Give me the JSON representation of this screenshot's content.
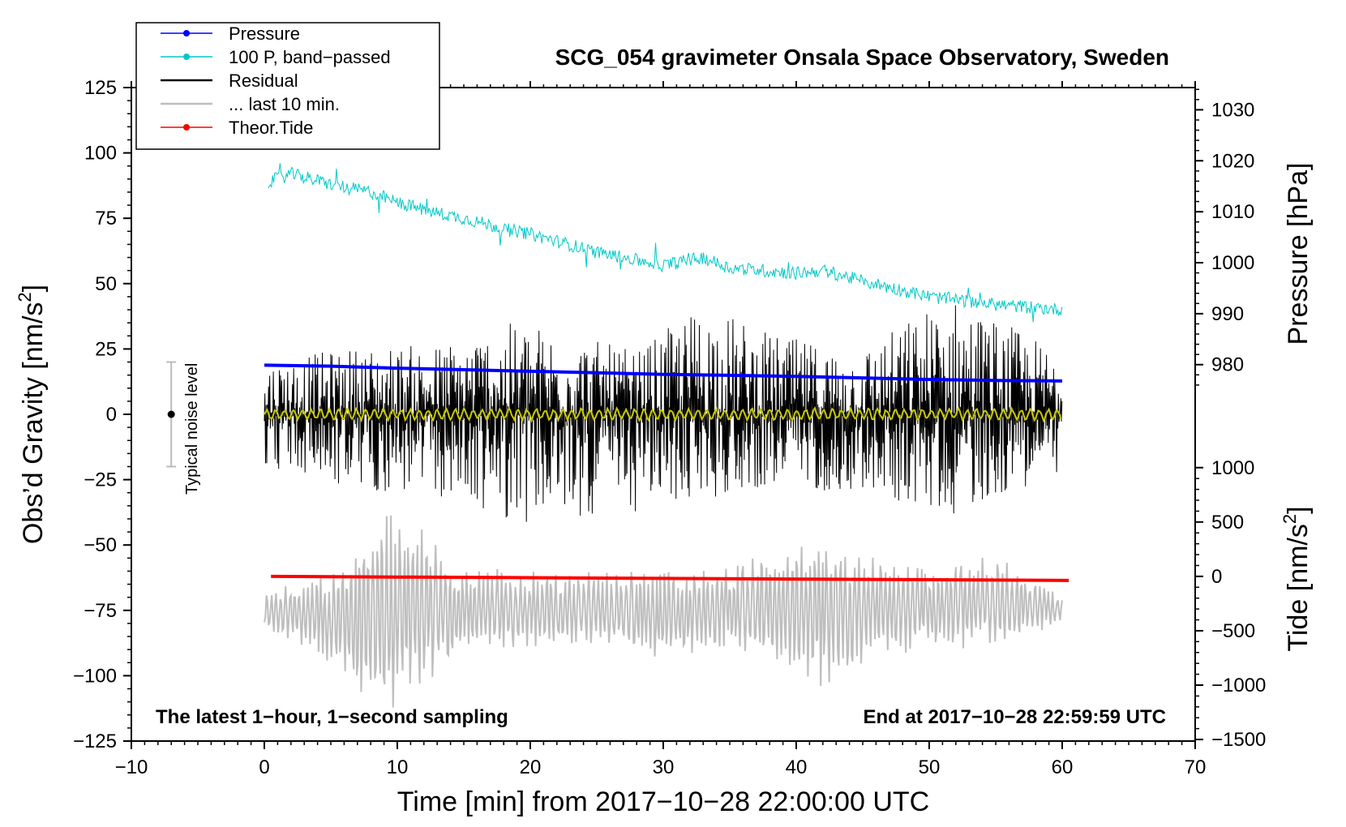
{
  "chart_data": {
    "type": "line",
    "title": "SCG_054 gravimeter Onsala Space Observatory, Sweden",
    "xlabel": "Time [min] from 2017−10−28 22:00:00 UTC",
    "xlim": [
      -10,
      70
    ],
    "x_ticks": [
      -10,
      0,
      10,
      20,
      30,
      40,
      50,
      60,
      70
    ],
    "x_tick_labels": [
      "−10",
      "0",
      "10",
      "20",
      "30",
      "40",
      "50",
      "60",
      "70"
    ],
    "left_axis": {
      "label_main": "Obs’d Gravity [nm/s",
      "label_sup": "2",
      "label_end": "]",
      "ylim": [
        -125,
        125
      ],
      "ticks": [
        125,
        100,
        75,
        50,
        25,
        0,
        -25,
        -50,
        -75,
        -100,
        -125
      ],
      "tick_labels": [
        "125",
        "100",
        "75",
        "50",
        "25",
        "0",
        "−25",
        "−50",
        "−75",
        "−100",
        "−125"
      ]
    },
    "pressure_axis": {
      "label": "Pressure [hPa]",
      "ticks": [
        980,
        990,
        1000,
        1010,
        1020,
        1030
      ],
      "tick_labels": [
        "980",
        "990",
        "1000",
        "1010",
        "1020",
        "1030"
      ],
      "map_gravity_at_980": 19,
      "map_gravity_per_hpa": 1.95
    },
    "tide_axis": {
      "label_main": "Tide [nm/s",
      "label_sup": "2",
      "label_end": "]",
      "ticks": [
        1000,
        500,
        0,
        -500,
        -1000,
        -1500
      ],
      "tick_labels": [
        "1000",
        "500",
        "0",
        "−500",
        "−1000",
        "−1500"
      ],
      "map_gravity_at_0": -62,
      "map_gravity_per_unit": 0.0416
    },
    "legend": {
      "position": "top-left",
      "entries": [
        {
          "label": "Pressure",
          "color": "#0000ff",
          "marker": true
        },
        {
          "label": "100 P, band−passed",
          "color": "#00c8c8",
          "marker": true
        },
        {
          "label": "Residual",
          "color": "#000000",
          "marker": false
        },
        {
          "label": "... last 10 min.",
          "color": "#bebebe",
          "marker": false
        },
        {
          "label": "Theor.Tide",
          "color": "#ff0000",
          "marker": true
        }
      ]
    },
    "noise_indicator": {
      "label": "Typical noise level",
      "x": -7,
      "center": 0,
      "half_range": 20
    },
    "note_left": "The latest 1−hour, 1−second sampling",
    "note_right": "End at 2017−10−28 22:59:59 UTC",
    "series": [
      {
        "name": "Pressure",
        "color": "#0000ff",
        "unit": "hPa",
        "x": [
          0,
          5,
          10,
          15,
          20,
          25,
          30,
          35,
          40,
          45,
          50,
          55,
          60
        ],
        "y": [
          979.9,
          979.7,
          979.3,
          979.0,
          978.7,
          978.4,
          978.1,
          977.9,
          977.7,
          977.4,
          977.1,
          976.9,
          976.8
        ]
      },
      {
        "name": "100 P, band−passed",
        "color": "#00c8c8",
        "unit": "nm/s2 (left axis)",
        "x": [
          0.3,
          2,
          5,
          8,
          10,
          13,
          15,
          18,
          20,
          25,
          30,
          33,
          35,
          40,
          42,
          45,
          50,
          55,
          60
        ],
        "y": [
          89,
          92,
          88,
          85,
          81,
          77,
          75,
          71,
          69,
          62,
          57,
          60,
          56,
          54,
          55,
          51,
          45,
          42,
          40
        ]
      },
      {
        "name": "Residual",
        "color": "#000000",
        "unit": "nm/s2",
        "x": [
          0,
          7,
          13,
          19.3,
          28,
          33,
          38,
          44.5,
          51.5,
          60
        ],
        "y_max": [
          20,
          26,
          27,
          36,
          24,
          43,
          31,
          24,
          46,
          24
        ],
        "y_min": [
          -20,
          -30,
          -32,
          -42,
          -38,
          -33,
          -28,
          -30,
          -39,
          -22
        ]
      },
      {
        "name": "Residual smoothed",
        "color": "#c8c800",
        "unit": "nm/s2",
        "x": [
          0,
          10,
          20,
          30,
          40,
          50,
          60
        ],
        "y": [
          0,
          0,
          0,
          0,
          0,
          0,
          0
        ]
      },
      {
        "name": "... last 10 min.",
        "color": "#bebebe",
        "unit": "nm/s2",
        "x": [
          0,
          5,
          7,
          9.5,
          15,
          20,
          25,
          30,
          35,
          40,
          43,
          45,
          50,
          55,
          60
        ],
        "y_max": [
          -67,
          -60,
          -48,
          -32,
          -58,
          -60,
          -60,
          -58,
          -58,
          -48,
          -48,
          -52,
          -58,
          -53,
          -70
        ],
        "y_min": [
          -82,
          -95,
          -113,
          -115,
          -92,
          -90,
          -88,
          -95,
          -90,
          -100,
          -108,
          -96,
          -90,
          -90,
          -80
        ]
      },
      {
        "name": "Theor.Tide",
        "color": "#ff0000",
        "unit": "nm/s2",
        "x": [
          0.5,
          10,
          20,
          30,
          40,
          50,
          60.5
        ],
        "y": [
          0,
          -6,
          -12,
          -19,
          -25,
          -31,
          -37
        ]
      }
    ]
  }
}
